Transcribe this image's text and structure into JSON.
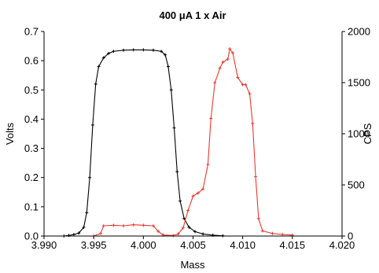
{
  "chart_data": {
    "type": "line",
    "title": "400 μA 1 x Air",
    "xlabel": "Mass",
    "ylabel_left": "Volts",
    "ylabel_right": "CPS",
    "xlim": [
      3.99,
      4.02
    ],
    "ylim_left": [
      0,
      0.7
    ],
    "ylim_right": [
      0,
      2000
    ],
    "x_ticks": [
      "3.990",
      "3.995",
      "4.000",
      "4.005",
      "4.010",
      "4.015",
      "4.020"
    ],
    "y_left_ticks": [
      "0.0",
      "0.1",
      "0.2",
      "0.3",
      "0.4",
      "0.5",
      "0.6",
      "0.7"
    ],
    "y_right_ticks": [
      "0",
      "500",
      "1000",
      "1500",
      "2000"
    ],
    "grid": false,
    "series": [
      {
        "axis": "left",
        "color": "#000000",
        "marker": "plus",
        "points": [
          [
            3.992,
            0.0
          ],
          [
            3.9925,
            0.002
          ],
          [
            3.993,
            0.005
          ],
          [
            3.9935,
            0.01
          ],
          [
            3.994,
            0.03
          ],
          [
            3.9943,
            0.08
          ],
          [
            3.9946,
            0.2
          ],
          [
            3.9949,
            0.38
          ],
          [
            3.9952,
            0.52
          ],
          [
            3.9955,
            0.58
          ],
          [
            3.996,
            0.61
          ],
          [
            3.9965,
            0.625
          ],
          [
            3.997,
            0.632
          ],
          [
            3.998,
            0.636
          ],
          [
            3.999,
            0.637
          ],
          [
            4.0,
            0.637
          ],
          [
            4.001,
            0.636
          ],
          [
            4.0018,
            0.632
          ],
          [
            4.0022,
            0.62
          ],
          [
            4.0025,
            0.58
          ],
          [
            4.0028,
            0.5
          ],
          [
            4.0031,
            0.37
          ],
          [
            4.0034,
            0.22
          ],
          [
            4.0037,
            0.12
          ],
          [
            4.0041,
            0.06
          ],
          [
            4.0046,
            0.03
          ],
          [
            4.0052,
            0.015
          ],
          [
            4.006,
            0.007
          ],
          [
            4.007,
            0.003
          ],
          [
            4.008,
            0.001
          ]
        ]
      },
      {
        "axis": "right",
        "color": "#e8392f",
        "marker": "plus",
        "points": [
          [
            3.995,
            0
          ],
          [
            3.9957,
            25
          ],
          [
            3.996,
            100
          ],
          [
            3.997,
            105
          ],
          [
            3.998,
            100
          ],
          [
            3.999,
            110
          ],
          [
            4.0,
            105
          ],
          [
            4.001,
            100
          ],
          [
            4.0015,
            45
          ],
          [
            4.002,
            10
          ],
          [
            4.003,
            5
          ],
          [
            4.0035,
            20
          ],
          [
            4.004,
            80
          ],
          [
            4.0045,
            250
          ],
          [
            4.005,
            390
          ],
          [
            4.0055,
            420
          ],
          [
            4.006,
            460
          ],
          [
            4.0065,
            700
          ],
          [
            4.0068,
            1150
          ],
          [
            4.0072,
            1500
          ],
          [
            4.0077,
            1640
          ],
          [
            4.008,
            1700
          ],
          [
            4.0085,
            1730
          ],
          [
            4.0087,
            1830
          ],
          [
            4.009,
            1790
          ],
          [
            4.0095,
            1550
          ],
          [
            4.01,
            1480
          ],
          [
            4.0103,
            1480
          ],
          [
            4.0107,
            1390
          ],
          [
            4.011,
            1100
          ],
          [
            4.0113,
            580
          ],
          [
            4.0116,
            170
          ],
          [
            4.012,
            50
          ],
          [
            4.013,
            25
          ],
          [
            4.014,
            15
          ],
          [
            4.015,
            10
          ]
        ]
      }
    ]
  }
}
